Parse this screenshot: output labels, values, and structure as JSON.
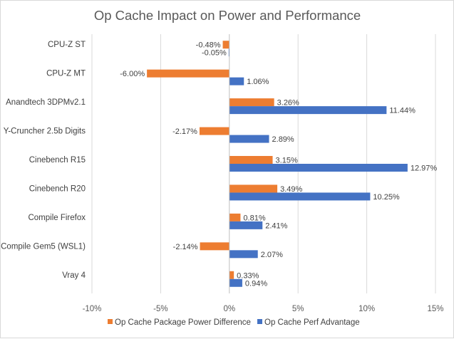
{
  "chart_data": {
    "type": "bar",
    "orientation": "horizontal",
    "title": "Op Cache Impact on Power and Performance",
    "xlabel": "",
    "ylabel": "",
    "categories": [
      "CPU-Z ST",
      "CPU-Z MT",
      "Anandtech 3DPMv2.1",
      "Y-Cruncher 2.5b Digits",
      "Cinebench R15",
      "Cinebench R20",
      "Compile Firefox",
      "Compile Gem5 (WSL1)",
      "Vray 4"
    ],
    "series": [
      {
        "name": "Op Cache Package Power Difference",
        "color": "#ED7D31",
        "values": [
          -0.48,
          -6.0,
          3.26,
          -2.17,
          3.15,
          3.49,
          0.81,
          -2.14,
          0.33
        ],
        "labels": [
          "-0.48%",
          "-6.00%",
          "3.26%",
          "-2.17%",
          "3.15%",
          "3.49%",
          "0.81%",
          "-2.14%",
          "0.33%"
        ]
      },
      {
        "name": "Op Cache Perf Advantage",
        "color": "#4472C4",
        "values": [
          -0.05,
          1.06,
          11.44,
          2.89,
          12.97,
          10.25,
          2.41,
          2.07,
          0.94
        ],
        "labels": [
          "-0.05%",
          "1.06%",
          "11.44%",
          "2.89%",
          "12.97%",
          "10.25%",
          "2.41%",
          "2.07%",
          "0.94%"
        ]
      }
    ],
    "xlim": [
      -10,
      15
    ],
    "ticks": [
      -10,
      -5,
      0,
      5,
      10,
      15
    ],
    "tick_labels": [
      "-10%",
      "-5%",
      "0%",
      "5%",
      "10%",
      "15%"
    ],
    "grid": true,
    "legend_position": "bottom"
  }
}
